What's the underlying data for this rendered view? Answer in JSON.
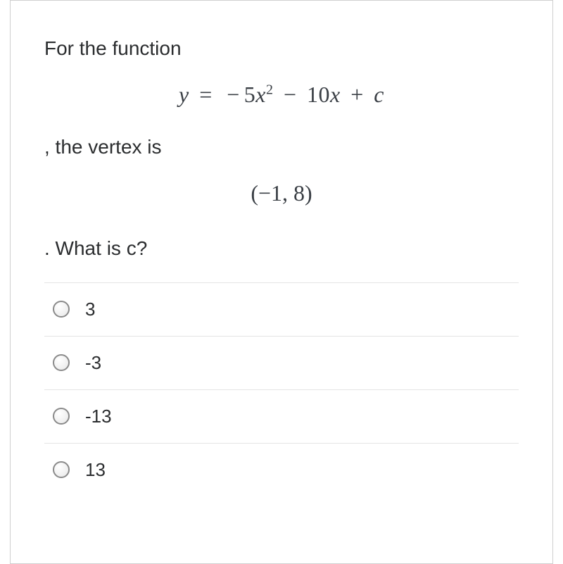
{
  "question": {
    "intro": "For the function",
    "equation_parts": {
      "lhs": "y",
      "eq": "=",
      "neg": "−",
      "coef1": "5",
      "var1": "x",
      "exp": "2",
      "minus": "−",
      "coef2": "10",
      "var2": "x",
      "plus": "+",
      "const": "c"
    },
    "mid": ", the vertex is",
    "vertex_parts": {
      "open": "(",
      "neg": "−",
      "x": "1",
      "comma": ", ",
      "y": "8",
      "close": ")"
    },
    "tail": ". What is c?"
  },
  "options": [
    {
      "label": "3"
    },
    {
      "label": "-3"
    },
    {
      "label": "-13"
    },
    {
      "label": "13"
    }
  ],
  "styling": {
    "text_color": "#2b2d2f",
    "math_color": "#3a3f45",
    "border_color": "#d0d0d0",
    "divider_color": "#e4e4e4",
    "radio_border": "#8a8a8a",
    "background": "#ffffff",
    "prompt_fontsize": 28,
    "equation_fontsize": 32,
    "option_fontsize": 26
  }
}
